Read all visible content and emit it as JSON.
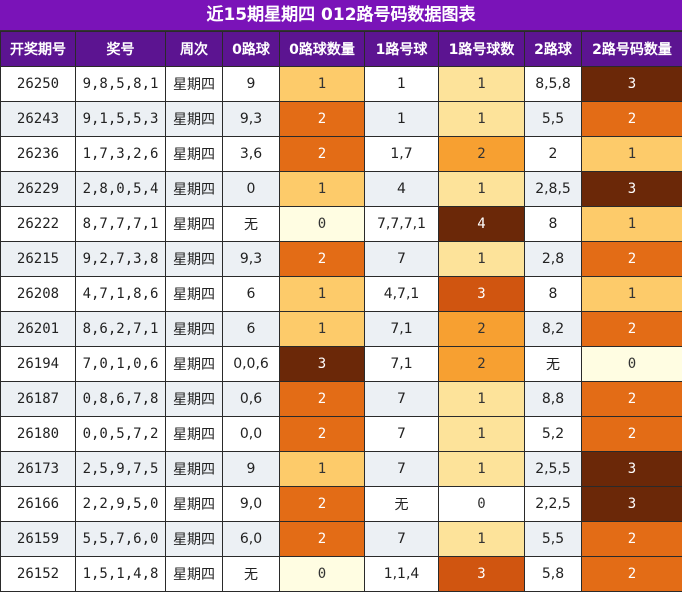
{
  "title": "近15期星期四 012路号码数据图表",
  "headers": [
    "开奖期号",
    "奖号",
    "周次",
    "0路球",
    "0路球数量",
    "1路号球",
    "1路号球数",
    "2路球",
    "2路号码数量"
  ],
  "colors": {
    "count_0": "#fffde2",
    "count_1": "#fdcb6a",
    "count_2": "#e36c16",
    "count_3": "#6b2808",
    "road1_1": "#fde39a",
    "road1_2": "#f7a031",
    "road1_3": "#d05510",
    "road1_4": "#6b2808"
  },
  "rows": [
    {
      "issue": "26250",
      "numbers": "9,8,5,8,1",
      "weekday": "星期四",
      "r0": "9",
      "r0_count": "1",
      "r1": "1",
      "r1_count": "1",
      "r2": "8,5,8",
      "r2_count": "3"
    },
    {
      "issue": "26243",
      "numbers": "9,1,5,5,3",
      "weekday": "星期四",
      "r0": "9,3",
      "r0_count": "2",
      "r1": "1",
      "r1_count": "1",
      "r2": "5,5",
      "r2_count": "2"
    },
    {
      "issue": "26236",
      "numbers": "1,7,3,2,6",
      "weekday": "星期四",
      "r0": "3,6",
      "r0_count": "2",
      "r1": "1,7",
      "r1_count": "2",
      "r2": "2",
      "r2_count": "1"
    },
    {
      "issue": "26229",
      "numbers": "2,8,0,5,4",
      "weekday": "星期四",
      "r0": "0",
      "r0_count": "1",
      "r1": "4",
      "r1_count": "1",
      "r2": "2,8,5",
      "r2_count": "3"
    },
    {
      "issue": "26222",
      "numbers": "8,7,7,7,1",
      "weekday": "星期四",
      "r0": "无",
      "r0_count": "0",
      "r1": "7,7,7,1",
      "r1_count": "4",
      "r2": "8",
      "r2_count": "1"
    },
    {
      "issue": "26215",
      "numbers": "9,2,7,3,8",
      "weekday": "星期四",
      "r0": "9,3",
      "r0_count": "2",
      "r1": "7",
      "r1_count": "1",
      "r2": "2,8",
      "r2_count": "2"
    },
    {
      "issue": "26208",
      "numbers": "4,7,1,8,6",
      "weekday": "星期四",
      "r0": "6",
      "r0_count": "1",
      "r1": "4,7,1",
      "r1_count": "3",
      "r2": "8",
      "r2_count": "1"
    },
    {
      "issue": "26201",
      "numbers": "8,6,2,7,1",
      "weekday": "星期四",
      "r0": "6",
      "r0_count": "1",
      "r1": "7,1",
      "r1_count": "2",
      "r2": "8,2",
      "r2_count": "2"
    },
    {
      "issue": "26194",
      "numbers": "7,0,1,0,6",
      "weekday": "星期四",
      "r0": "0,0,6",
      "r0_count": "3",
      "r1": "7,1",
      "r1_count": "2",
      "r2": "无",
      "r2_count": "0"
    },
    {
      "issue": "26187",
      "numbers": "0,8,6,7,8",
      "weekday": "星期四",
      "r0": "0,6",
      "r0_count": "2",
      "r1": "7",
      "r1_count": "1",
      "r2": "8,8",
      "r2_count": "2"
    },
    {
      "issue": "26180",
      "numbers": "0,0,5,7,2",
      "weekday": "星期四",
      "r0": "0,0",
      "r0_count": "2",
      "r1": "7",
      "r1_count": "1",
      "r2": "5,2",
      "r2_count": "2"
    },
    {
      "issue": "26173",
      "numbers": "2,5,9,7,5",
      "weekday": "星期四",
      "r0": "9",
      "r0_count": "1",
      "r1": "7",
      "r1_count": "1",
      "r2": "2,5,5",
      "r2_count": "3"
    },
    {
      "issue": "26166",
      "numbers": "2,2,9,5,0",
      "weekday": "星期四",
      "r0": "9,0",
      "r0_count": "2",
      "r1": "无",
      "r1_count": "0",
      "r2": "2,2,5",
      "r2_count": "3"
    },
    {
      "issue": "26159",
      "numbers": "5,5,7,6,0",
      "weekday": "星期四",
      "r0": "6,0",
      "r0_count": "2",
      "r1": "7",
      "r1_count": "1",
      "r2": "5,5",
      "r2_count": "2"
    },
    {
      "issue": "26152",
      "numbers": "1,5,1,4,8",
      "weekday": "星期四",
      "r0": "无",
      "r0_count": "0",
      "r1": "1,1,4",
      "r1_count": "3",
      "r2": "5,8",
      "r2_count": "2"
    }
  ]
}
